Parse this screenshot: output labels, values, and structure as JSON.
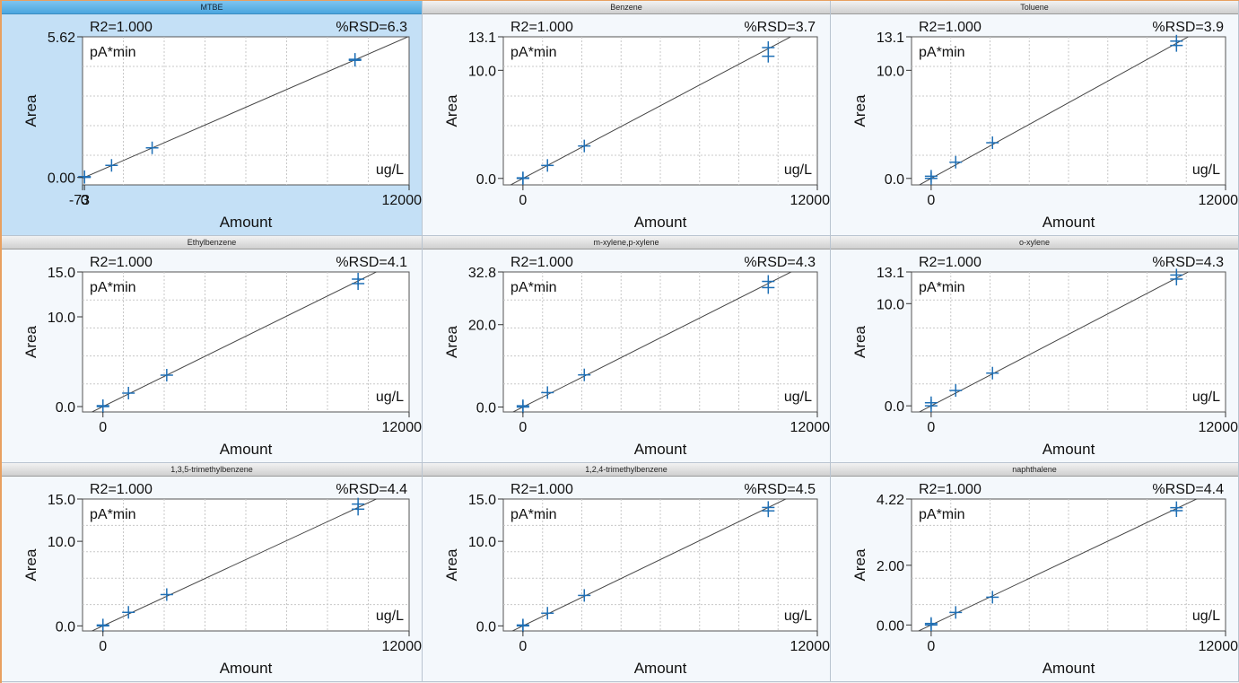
{
  "chart_data": [
    {
      "type": "scatter",
      "title": "MTBE",
      "r2": "R2=1.000",
      "rsd": "%RSD=6.3",
      "unit_y": "pA*min",
      "unit_x": "ug/L",
      "xlabel": "Amount",
      "ylabel": "Area",
      "xlim": [
        -73,
        12000
      ],
      "ylim": [
        -0.3,
        5.62
      ],
      "yticks": [
        "0.00",
        "5.62"
      ],
      "xticks": [
        "-73",
        "0",
        "12000"
      ],
      "selected": true,
      "fit": {
        "slope": 0.00047,
        "intercept": 0.0
      },
      "points": [
        {
          "x": 0,
          "y": 0.0
        },
        {
          "x": 0,
          "y": 0.03
        },
        {
          "x": 1000,
          "y": 0.48
        },
        {
          "x": 2500,
          "y": 1.18
        },
        {
          "x": 10000,
          "y": 4.72
        },
        {
          "x": 10000,
          "y": 4.68
        }
      ]
    },
    {
      "type": "scatter",
      "title": "Benzene",
      "r2": "R2=1.000",
      "rsd": "%RSD=3.7",
      "unit_y": "pA*min",
      "unit_x": "ug/L",
      "xlabel": "Amount",
      "ylabel": "Area",
      "xlim": [
        -800,
        12000
      ],
      "ylim": [
        -0.6,
        13.1
      ],
      "yticks": [
        "0.0",
        "10.0",
        "13.1"
      ],
      "xticks": [
        "0",
        "12000"
      ],
      "fit": {
        "slope": 0.0012,
        "intercept": 0.0
      },
      "points": [
        {
          "x": 0,
          "y": 0.0
        },
        {
          "x": 0,
          "y": 0.05
        },
        {
          "x": 1000,
          "y": 1.2
        },
        {
          "x": 2500,
          "y": 3.0
        },
        {
          "x": 10000,
          "y": 11.3
        },
        {
          "x": 10000,
          "y": 12.1
        }
      ]
    },
    {
      "type": "scatter",
      "title": "Toluene",
      "r2": "R2=1.000",
      "rsd": "%RSD=3.9",
      "unit_y": "pA*min",
      "unit_x": "ug/L",
      "xlabel": "Amount",
      "ylabel": "Area",
      "xlim": [
        -800,
        12000
      ],
      "ylim": [
        -0.6,
        13.1
      ],
      "yticks": [
        "0.0",
        "10.0",
        "13.1"
      ],
      "xticks": [
        "0",
        "12000"
      ],
      "fit": {
        "slope": 0.00125,
        "intercept": 0.0
      },
      "points": [
        {
          "x": 0,
          "y": 0.0
        },
        {
          "x": 0,
          "y": 0.2
        },
        {
          "x": 1000,
          "y": 1.5
        },
        {
          "x": 2500,
          "y": 3.3
        },
        {
          "x": 10000,
          "y": 12.3
        },
        {
          "x": 10000,
          "y": 12.7
        }
      ]
    },
    {
      "type": "scatter",
      "title": "Ethylbenzene",
      "r2": "R2=1.000",
      "rsd": "%RSD=4.1",
      "unit_y": "pA*min",
      "unit_x": "ug/L",
      "xlabel": "Amount",
      "ylabel": "Area",
      "xlim": [
        -800,
        12000
      ],
      "ylim": [
        -0.6,
        15.0
      ],
      "yticks": [
        "0.0",
        "10.0",
        "15.0"
      ],
      "xticks": [
        "0",
        "12000"
      ],
      "fit": {
        "slope": 0.0014,
        "intercept": 0.0
      },
      "points": [
        {
          "x": 0,
          "y": 0.0
        },
        {
          "x": 0,
          "y": 0.1
        },
        {
          "x": 1000,
          "y": 1.5
        },
        {
          "x": 2500,
          "y": 3.5
        },
        {
          "x": 10000,
          "y": 13.7
        },
        {
          "x": 10000,
          "y": 14.2
        }
      ]
    },
    {
      "type": "scatter",
      "title": "m-xylene,p-xylene",
      "r2": "R2=1.000",
      "rsd": "%RSD=4.3",
      "unit_y": "pA*min",
      "unit_x": "ug/L",
      "xlabel": "Amount",
      "ylabel": "Area",
      "xlim": [
        -800,
        12000
      ],
      "ylim": [
        -1.2,
        32.8
      ],
      "yticks": [
        "0.0",
        "20.0",
        "32.8"
      ],
      "xticks": [
        "0",
        "12000"
      ],
      "fit": {
        "slope": 0.003,
        "intercept": 0.0
      },
      "points": [
        {
          "x": 0,
          "y": 0.0
        },
        {
          "x": 0,
          "y": 0.3
        },
        {
          "x": 1000,
          "y": 3.5
        },
        {
          "x": 2500,
          "y": 7.8
        },
        {
          "x": 10000,
          "y": 29.0
        },
        {
          "x": 10000,
          "y": 30.5
        }
      ]
    },
    {
      "type": "scatter",
      "title": "o-xylene",
      "r2": "R2=1.000",
      "rsd": "%RSD=4.3",
      "unit_y": "pA*min",
      "unit_x": "ug/L",
      "xlabel": "Amount",
      "ylabel": "Area",
      "xlim": [
        -800,
        12000
      ],
      "ylim": [
        -0.6,
        13.1
      ],
      "yticks": [
        "0.0",
        "10.0",
        "13.1"
      ],
      "xticks": [
        "0",
        "12000"
      ],
      "fit": {
        "slope": 0.00125,
        "intercept": 0.0
      },
      "points": [
        {
          "x": 0,
          "y": 0.0
        },
        {
          "x": 0,
          "y": 0.3
        },
        {
          "x": 1000,
          "y": 1.5
        },
        {
          "x": 2500,
          "y": 3.2
        },
        {
          "x": 10000,
          "y": 12.4
        },
        {
          "x": 10000,
          "y": 12.8
        }
      ]
    },
    {
      "type": "scatter",
      "title": "1,3,5-trimethylbenzene",
      "r2": "R2=1.000",
      "rsd": "%RSD=4.4",
      "unit_y": "pA*min",
      "unit_x": "ug/L",
      "xlabel": "Amount",
      "ylabel": "Area",
      "xlim": [
        -800,
        12000
      ],
      "ylim": [
        -0.6,
        15.0
      ],
      "yticks": [
        "0.0",
        "10.0",
        "15.0"
      ],
      "xticks": [
        "0",
        "12000"
      ],
      "fit": {
        "slope": 0.0014,
        "intercept": 0.0
      },
      "points": [
        {
          "x": 0,
          "y": 0.0
        },
        {
          "x": 0,
          "y": 0.1
        },
        {
          "x": 1000,
          "y": 1.6
        },
        {
          "x": 2500,
          "y": 3.7
        },
        {
          "x": 10000,
          "y": 13.8
        },
        {
          "x": 10000,
          "y": 14.4
        }
      ]
    },
    {
      "type": "scatter",
      "title": "1,2,4-trimethylbenzene",
      "r2": "R2=1.000",
      "rsd": "%RSD=4.5",
      "unit_y": "pA*min",
      "unit_x": "ug/L",
      "xlabel": "Amount",
      "ylabel": "Area",
      "xlim": [
        -800,
        12000
      ],
      "ylim": [
        -0.6,
        15.0
      ],
      "yticks": [
        "0.0",
        "10.0",
        "15.0"
      ],
      "xticks": [
        "0",
        "12000"
      ],
      "fit": {
        "slope": 0.0014,
        "intercept": 0.0
      },
      "points": [
        {
          "x": 0,
          "y": 0.0
        },
        {
          "x": 0,
          "y": 0.1
        },
        {
          "x": 1000,
          "y": 1.5
        },
        {
          "x": 2500,
          "y": 3.6
        },
        {
          "x": 10000,
          "y": 13.6
        },
        {
          "x": 10000,
          "y": 14.0
        }
      ]
    },
    {
      "type": "scatter",
      "title": "naphthalene",
      "r2": "R2=1.000",
      "rsd": "%RSD=4.4",
      "unit_y": "pA*min",
      "unit_x": "ug/L",
      "xlabel": "Amount",
      "ylabel": "Area",
      "xlim": [
        -800,
        12000
      ],
      "ylim": [
        -0.2,
        4.22
      ],
      "yticks": [
        "0.00",
        "2.00",
        "4.22"
      ],
      "xticks": [
        "0",
        "12000"
      ],
      "fit": {
        "slope": 0.00039,
        "intercept": 0.0
      },
      "points": [
        {
          "x": 0,
          "y": 0.0
        },
        {
          "x": 0,
          "y": 0.05
        },
        {
          "x": 1000,
          "y": 0.42
        },
        {
          "x": 2500,
          "y": 0.93
        },
        {
          "x": 10000,
          "y": 3.83
        },
        {
          "x": 10000,
          "y": 3.93
        }
      ]
    }
  ],
  "colors": {
    "marker": "#1f6fb5",
    "fit_line": "#444444",
    "grid": "#c8c8c8",
    "selected_bg": "#c4e0f6"
  }
}
